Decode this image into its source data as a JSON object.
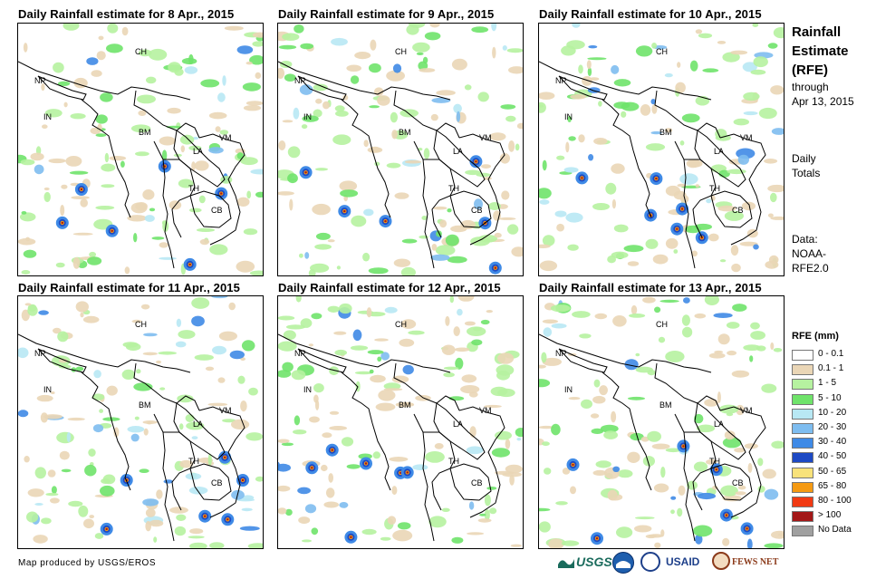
{
  "panels": [
    {
      "title": "Daily Rainfall estimate for 8 Apr., 2015"
    },
    {
      "title": "Daily Rainfall estimate for 9 Apr., 2015"
    },
    {
      "title": "Daily Rainfall estimate for 10 Apr., 2015"
    },
    {
      "title": "Daily Rainfall estimate for 11 Apr., 2015"
    },
    {
      "title": "Daily Rainfall estimate for 12 Apr., 2015"
    },
    {
      "title": "Daily Rainfall estimate for 13 Apr., 2015"
    }
  ],
  "country_labels": {
    "ch": "CH",
    "np": "NP",
    "in": "IN",
    "bm": "BM",
    "la": "LA",
    "vm": "VM",
    "th": "TH",
    "cb": "CB"
  },
  "side": {
    "title_line1": "Rainfall",
    "title_line2": "Estimate",
    "title_line3": "(RFE)",
    "through": "through",
    "date": "Apr 13, 2015",
    "daily": "Daily",
    "totals": "Totals",
    "data_label": "Data:",
    "data_source_line1": "NOAA-",
    "data_source_line2": "RFE2.0"
  },
  "legend": {
    "title": "RFE (mm)",
    "items": [
      {
        "label": "0 - 0.1",
        "color": "#ffffff"
      },
      {
        "label": "0.1 - 1",
        "color": "#ead6b6"
      },
      {
        "label": "1 - 5",
        "color": "#b6f2a0"
      },
      {
        "label": "5 - 10",
        "color": "#6fe36a"
      },
      {
        "label": "10 - 20",
        "color": "#b8e8f4"
      },
      {
        "label": "20 - 30",
        "color": "#7ebdf0"
      },
      {
        "label": "30 - 40",
        "color": "#3f8ae6"
      },
      {
        "label": "40 - 50",
        "color": "#1d49c4"
      },
      {
        "label": "50 - 65",
        "color": "#f8e27a"
      },
      {
        "label": "65 - 80",
        "color": "#f59a12"
      },
      {
        "label": "80 - 100",
        "color": "#f13a13"
      },
      {
        "label": "> 100",
        "color": "#a31717"
      },
      {
        "label": "No Data",
        "color": "#a0a0a0"
      }
    ]
  },
  "footer": {
    "credit": "Map produced by USGS/EROS"
  },
  "logos": {
    "usgs": "USGS",
    "usaid": "USAID",
    "fews": "FEWS NET"
  }
}
